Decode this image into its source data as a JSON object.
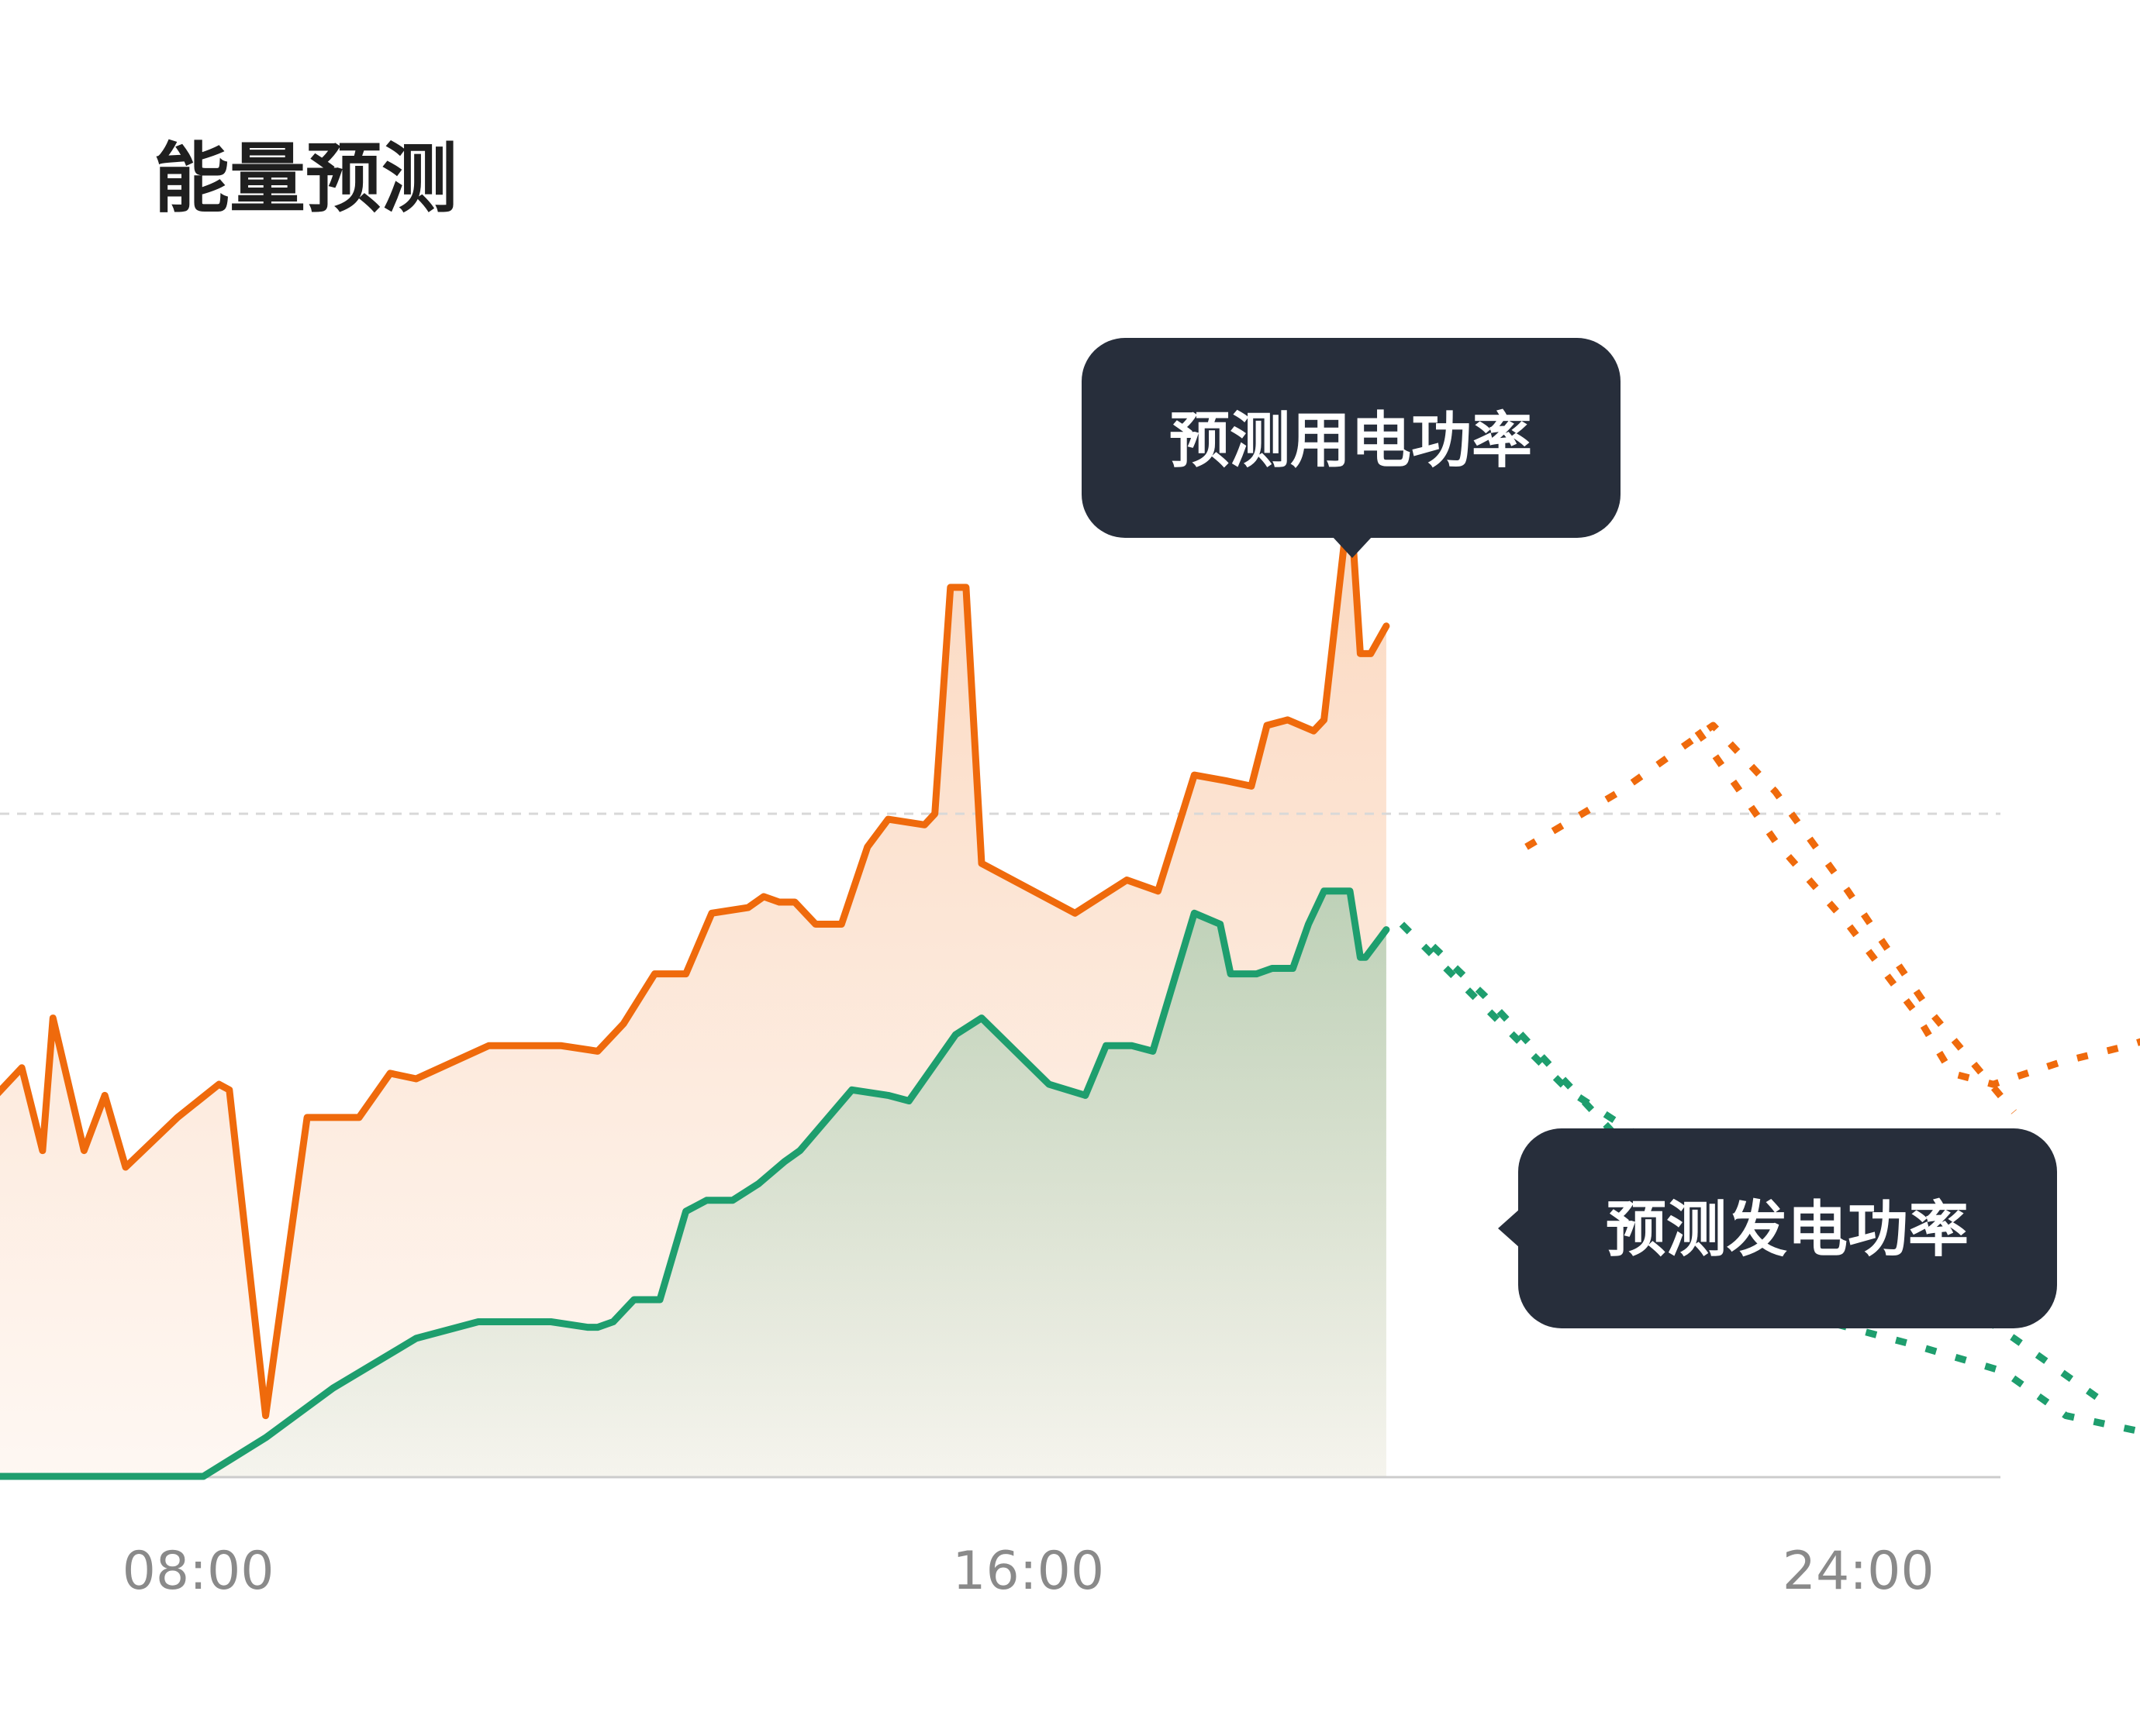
{
  "colors": {
    "consumption": "#ef6a0c",
    "generation": "#1e9e6e",
    "tooltip_bg": "#272e3b",
    "baseline": "#cccccc",
    "refline": "#d8d8d8"
  },
  "chart_data": {
    "type": "line",
    "title": "能量预测",
    "xlabel": "",
    "ylabel": "",
    "x_unit": "hour",
    "xlim": [
      6,
      28
    ],
    "ylim": [
      0,
      100
    ],
    "x_ticks": [
      {
        "value": 8,
        "label": "08:00"
      },
      {
        "value": 16,
        "label": "16:00"
      },
      {
        "value": 24,
        "label": "24:00"
      }
    ],
    "reference_y": 60,
    "grid": false,
    "legend": "none",
    "series": [
      {
        "key": "consumption_actual",
        "style": "solid-area",
        "color_key": "consumption",
        "points": [
          [
            5.9,
            33
          ],
          [
            6.3,
            37
          ],
          [
            6.5,
            29.5
          ],
          [
            6.6,
            41.5
          ],
          [
            6.9,
            29.5
          ],
          [
            7.1,
            34.5
          ],
          [
            7.3,
            28
          ],
          [
            7.8,
            32.5
          ],
          [
            8.2,
            35.5
          ],
          [
            8.3,
            35
          ],
          [
            8.65,
            5.5
          ],
          [
            9.05,
            32.5
          ],
          [
            9.55,
            32.5
          ],
          [
            9.85,
            36.5
          ],
          [
            10.1,
            36
          ],
          [
            10.8,
            39
          ],
          [
            11.5,
            39
          ],
          [
            11.85,
            38.5
          ],
          [
            12.1,
            41
          ],
          [
            12.4,
            45.5
          ],
          [
            12.7,
            45.5
          ],
          [
            12.95,
            51
          ],
          [
            13.3,
            51.5
          ],
          [
            13.45,
            52.5
          ],
          [
            13.6,
            52
          ],
          [
            13.75,
            52
          ],
          [
            13.95,
            50
          ],
          [
            14.2,
            50
          ],
          [
            14.45,
            57
          ],
          [
            14.65,
            59.5
          ],
          [
            15.0,
            59
          ],
          [
            15.1,
            60
          ],
          [
            15.25,
            80.5
          ],
          [
            15.4,
            80.5
          ],
          [
            15.55,
            55.5
          ],
          [
            16.45,
            51
          ],
          [
            16.95,
            54
          ],
          [
            17.25,
            53
          ],
          [
            17.6,
            63.5
          ],
          [
            17.9,
            63
          ],
          [
            18.15,
            62.5
          ],
          [
            18.3,
            68
          ],
          [
            18.5,
            68.5
          ],
          [
            18.75,
            67.5
          ],
          [
            18.85,
            68.5
          ],
          [
            19.1,
            89
          ],
          [
            19.2,
            74.5
          ],
          [
            19.3,
            74.5
          ],
          [
            19.45,
            77
          ]
        ]
      },
      {
        "key": "generation_actual",
        "style": "solid-area",
        "color_key": "generation",
        "points": [
          [
            5.9,
            0
          ],
          [
            8.05,
            0
          ],
          [
            8.65,
            3.5
          ],
          [
            9.3,
            8
          ],
          [
            10.1,
            12.5
          ],
          [
            10.7,
            14
          ],
          [
            11.4,
            14
          ],
          [
            11.75,
            13.5
          ],
          [
            11.85,
            13.5
          ],
          [
            12.0,
            14
          ],
          [
            12.2,
            16
          ],
          [
            12.45,
            16
          ],
          [
            12.7,
            24
          ],
          [
            12.9,
            25
          ],
          [
            13.15,
            25
          ],
          [
            13.4,
            26.5
          ],
          [
            13.65,
            28.5
          ],
          [
            13.8,
            29.5
          ],
          [
            14.3,
            35
          ],
          [
            14.65,
            34.5
          ],
          [
            14.85,
            34
          ],
          [
            15.3,
            40
          ],
          [
            15.55,
            41.5
          ],
          [
            16.2,
            35.5
          ],
          [
            16.55,
            34.5
          ],
          [
            16.75,
            39
          ],
          [
            17.0,
            39
          ],
          [
            17.2,
            38.5
          ],
          [
            17.6,
            51
          ],
          [
            17.85,
            50
          ],
          [
            17.95,
            45.5
          ],
          [
            18.2,
            45.5
          ],
          [
            18.35,
            46
          ],
          [
            18.55,
            46
          ],
          [
            18.7,
            50
          ],
          [
            18.85,
            53
          ],
          [
            19.1,
            53
          ],
          [
            19.2,
            47
          ],
          [
            19.25,
            47
          ],
          [
            19.45,
            49.5
          ]
        ]
      },
      {
        "key": "consumption_forecast_a",
        "style": "dotted",
        "color_key": "consumption",
        "points": [
          [
            20.8,
            57
          ],
          [
            21.7,
            62
          ],
          [
            22.6,
            68
          ],
          [
            23.2,
            62
          ],
          [
            23.9,
            53
          ],
          [
            24.7,
            42
          ],
          [
            25.5,
            33
          ]
        ]
      },
      {
        "key": "consumption_forecast_b",
        "style": "dotted",
        "color_key": "consumption",
        "points": [
          [
            22.45,
            67.5
          ],
          [
            23.2,
            57.5
          ],
          [
            23.9,
            50
          ],
          [
            24.55,
            42
          ],
          [
            24.9,
            36.5
          ],
          [
            25.3,
            35.5
          ],
          [
            25.95,
            37.5
          ],
          [
            26.6,
            39
          ],
          [
            27.1,
            40.5
          ]
        ]
      },
      {
        "key": "generation_forecast_a",
        "style": "dotted",
        "color_key": "generation",
        "points": [
          [
            19.6,
            50
          ],
          [
            20.4,
            42.5
          ],
          [
            21.2,
            35
          ],
          [
            22.1,
            29.5
          ],
          [
            22.9,
            26.5
          ],
          [
            23.7,
            23
          ],
          [
            24.6,
            18
          ],
          [
            25.5,
            12.5
          ],
          [
            26.4,
            6.5
          ]
        ]
      },
      {
        "key": "generation_forecast_b",
        "style": "dotted",
        "color_key": "generation",
        "points": [
          [
            19.9,
            48
          ],
          [
            20.4,
            43.5
          ],
          [
            21.0,
            37.5
          ],
          [
            21.7,
            30.5
          ],
          [
            22.8,
            19
          ],
          [
            23.5,
            14.5
          ],
          [
            24.5,
            12
          ],
          [
            25.4,
            9.5
          ],
          [
            26.0,
            5.5
          ],
          [
            27.0,
            3.5
          ],
          [
            28.0,
            3
          ]
        ]
      }
    ],
    "annotations": [
      {
        "label": "预测用电功率",
        "color_key": "tooltip_bg"
      },
      {
        "label": "预测发电功率",
        "color_key": "tooltip_bg"
      }
    ]
  }
}
